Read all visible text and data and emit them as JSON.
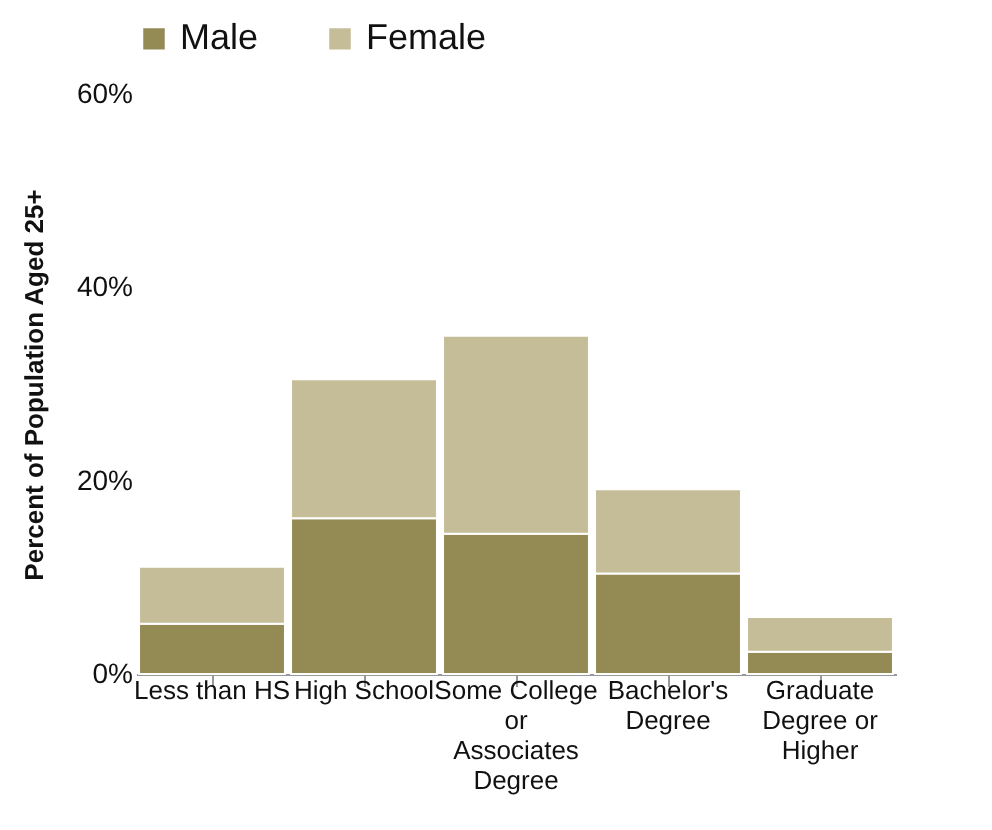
{
  "chart_data": {
    "type": "bar",
    "stacked": true,
    "ylabel": "Percent of Population Aged 25+",
    "categories": [
      "Less than HS",
      "High School",
      "Some College or Associates Degree",
      "Bachelor's Degree",
      "Graduate Degree or Higher"
    ],
    "series": [
      {
        "name": "Male",
        "color": "#938a54",
        "values": [
          5.2,
          16.1,
          14.5,
          10.4,
          2.3
        ]
      },
      {
        "name": "Female",
        "color": "#c5bd98",
        "values": [
          5.9,
          14.4,
          20.5,
          8.7,
          3.6
        ]
      }
    ],
    "ylim": [
      0,
      60
    ],
    "yticks": [
      {
        "value": 0,
        "label": "0%"
      },
      {
        "value": 20,
        "label": "20%"
      },
      {
        "value": 40,
        "label": "40%"
      },
      {
        "value": 60,
        "label": "60%"
      }
    ],
    "legend": "top",
    "grid": false
  }
}
